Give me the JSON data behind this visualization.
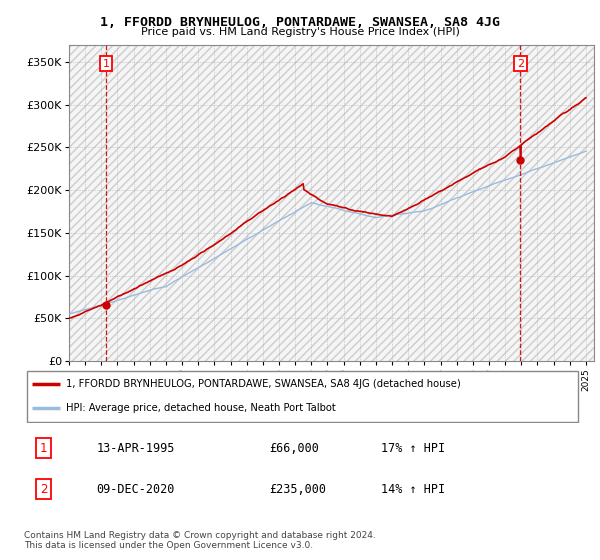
{
  "title": "1, FFORDD BRYNHEULOG, PONTARDAWE, SWANSEA, SA8 4JG",
  "subtitle": "Price paid vs. HM Land Registry's House Price Index (HPI)",
  "ylim": [
    0,
    370000
  ],
  "yticks": [
    0,
    50000,
    100000,
    150000,
    200000,
    250000,
    300000,
    350000
  ],
  "ytick_labels": [
    "£0",
    "£50K",
    "£100K",
    "£150K",
    "£200K",
    "£250K",
    "£300K",
    "£350K"
  ],
  "line1_color": "#cc0000",
  "line2_color": "#99bbdd",
  "purchase1_date": 1995.29,
  "purchase1_price": 66000,
  "purchase1_label": "1",
  "purchase2_date": 2020.94,
  "purchase2_price": 235000,
  "purchase2_label": "2",
  "vline_color": "#cc0000",
  "legend_line1": "1, FFORDD BRYNHEULOG, PONTARDAWE, SWANSEA, SA8 4JG (detached house)",
  "legend_line2": "HPI: Average price, detached house, Neath Port Talbot",
  "table_row1": [
    "1",
    "13-APR-1995",
    "£66,000",
    "17% ↑ HPI"
  ],
  "table_row2": [
    "2",
    "09-DEC-2020",
    "£235,000",
    "14% ↑ HPI"
  ],
  "footnote": "Contains HM Land Registry data © Crown copyright and database right 2024.\nThis data is licensed under the Open Government Licence v3.0.",
  "xstart": 1993,
  "xend": 2025.5
}
